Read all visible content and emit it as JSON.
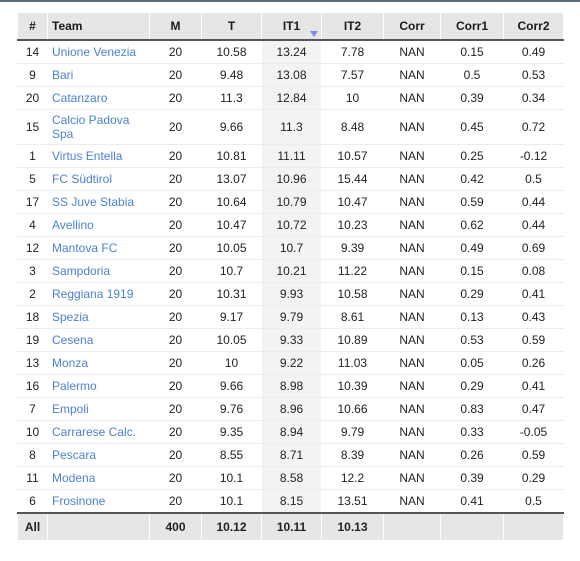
{
  "headers": [
    "#",
    "Team",
    "M",
    "T",
    "IT1",
    "IT2",
    "Corr",
    "Corr1",
    "Corr2"
  ],
  "rows": [
    {
      "num": "14",
      "team": "Unione Venezia",
      "m": "20",
      "t": "10.58",
      "it1": "13.24",
      "it2": "7.78",
      "corr": "NAN",
      "corr1": "0.15",
      "corr2": "0.49"
    },
    {
      "num": "9",
      "team": "Bari",
      "m": "20",
      "t": "9.48",
      "it1": "13.08",
      "it2": "7.57",
      "corr": "NAN",
      "corr1": "0.5",
      "corr2": "0.53"
    },
    {
      "num": "20",
      "team": "Catanzaro",
      "m": "20",
      "t": "11.3",
      "it1": "12.84",
      "it2": "10",
      "corr": "NAN",
      "corr1": "0.39",
      "corr2": "0.34"
    },
    {
      "num": "15",
      "team": "Calcio Padova Spa",
      "m": "20",
      "t": "9.66",
      "it1": "11.3",
      "it2": "8.48",
      "corr": "NAN",
      "corr1": "0.45",
      "corr2": "0.72"
    },
    {
      "num": "1",
      "team": "Virtus Entella",
      "m": "20",
      "t": "10.81",
      "it1": "11.11",
      "it2": "10.57",
      "corr": "NAN",
      "corr1": "0.25",
      "corr2": "-0.12"
    },
    {
      "num": "5",
      "team": "FC Südtirol",
      "m": "20",
      "t": "13.07",
      "it1": "10.96",
      "it2": "15.44",
      "corr": "NAN",
      "corr1": "0.42",
      "corr2": "0.5"
    },
    {
      "num": "17",
      "team": "SS Juve Stabia",
      "m": "20",
      "t": "10.64",
      "it1": "10.79",
      "it2": "10.47",
      "corr": "NAN",
      "corr1": "0.59",
      "corr2": "0.44"
    },
    {
      "num": "4",
      "team": "Avellino",
      "m": "20",
      "t": "10.47",
      "it1": "10.72",
      "it2": "10.23",
      "corr": "NAN",
      "corr1": "0.62",
      "corr2": "0.44"
    },
    {
      "num": "12",
      "team": "Mantova FC",
      "m": "20",
      "t": "10.05",
      "it1": "10.7",
      "it2": "9.39",
      "corr": "NAN",
      "corr1": "0.49",
      "corr2": "0.69"
    },
    {
      "num": "3",
      "team": "Sampdoria",
      "m": "20",
      "t": "10.7",
      "it1": "10.21",
      "it2": "11.22",
      "corr": "NAN",
      "corr1": "0.15",
      "corr2": "0.08"
    },
    {
      "num": "2",
      "team": "Reggiana 1919",
      "m": "20",
      "t": "10.31",
      "it1": "9.93",
      "it2": "10.58",
      "corr": "NAN",
      "corr1": "0.29",
      "corr2": "0.41"
    },
    {
      "num": "18",
      "team": "Spezia",
      "m": "20",
      "t": "9.17",
      "it1": "9.79",
      "it2": "8.61",
      "corr": "NAN",
      "corr1": "0.13",
      "corr2": "0.43"
    },
    {
      "num": "19",
      "team": "Cesena",
      "m": "20",
      "t": "10.05",
      "it1": "9.33",
      "it2": "10.89",
      "corr": "NAN",
      "corr1": "0.53",
      "corr2": "0.59"
    },
    {
      "num": "13",
      "team": "Monza",
      "m": "20",
      "t": "10",
      "it1": "9.22",
      "it2": "11.03",
      "corr": "NAN",
      "corr1": "0.05",
      "corr2": "0.26"
    },
    {
      "num": "16",
      "team": "Palermo",
      "m": "20",
      "t": "9.66",
      "it1": "8.98",
      "it2": "10.39",
      "corr": "NAN",
      "corr1": "0.29",
      "corr2": "0.41"
    },
    {
      "num": "7",
      "team": "Empoli",
      "m": "20",
      "t": "9.76",
      "it1": "8.96",
      "it2": "10.66",
      "corr": "NAN",
      "corr1": "0.83",
      "corr2": "0.47"
    },
    {
      "num": "10",
      "team": "Carrarese Calc.",
      "m": "20",
      "t": "9.35",
      "it1": "8.94",
      "it2": "9.79",
      "corr": "NAN",
      "corr1": "0.33",
      "corr2": "-0.05"
    },
    {
      "num": "8",
      "team": "Pescara",
      "m": "20",
      "t": "8.55",
      "it1": "8.71",
      "it2": "8.39",
      "corr": "NAN",
      "corr1": "0.26",
      "corr2": "0.59"
    },
    {
      "num": "11",
      "team": "Modena",
      "m": "20",
      "t": "10.1",
      "it1": "8.58",
      "it2": "12.2",
      "corr": "NAN",
      "corr1": "0.39",
      "corr2": "0.29"
    },
    {
      "num": "6",
      "team": "Frosinone",
      "m": "20",
      "t": "10.1",
      "it1": "8.15",
      "it2": "13.51",
      "corr": "NAN",
      "corr1": "0.41",
      "corr2": "0.5"
    }
  ],
  "footer": {
    "label": "All",
    "m": "400",
    "t": "10.12",
    "it1": "10.11",
    "it2": "10.13"
  },
  "sort": {
    "column": "IT1",
    "direction": "descending",
    "icon": "sort-desc-icon",
    "arrow_color": "#7b8de0"
  },
  "colors": {
    "link": "#4c82cc",
    "header_bg": "#e6e6e6",
    "sorted_col_bg": "#f3f3f3"
  }
}
